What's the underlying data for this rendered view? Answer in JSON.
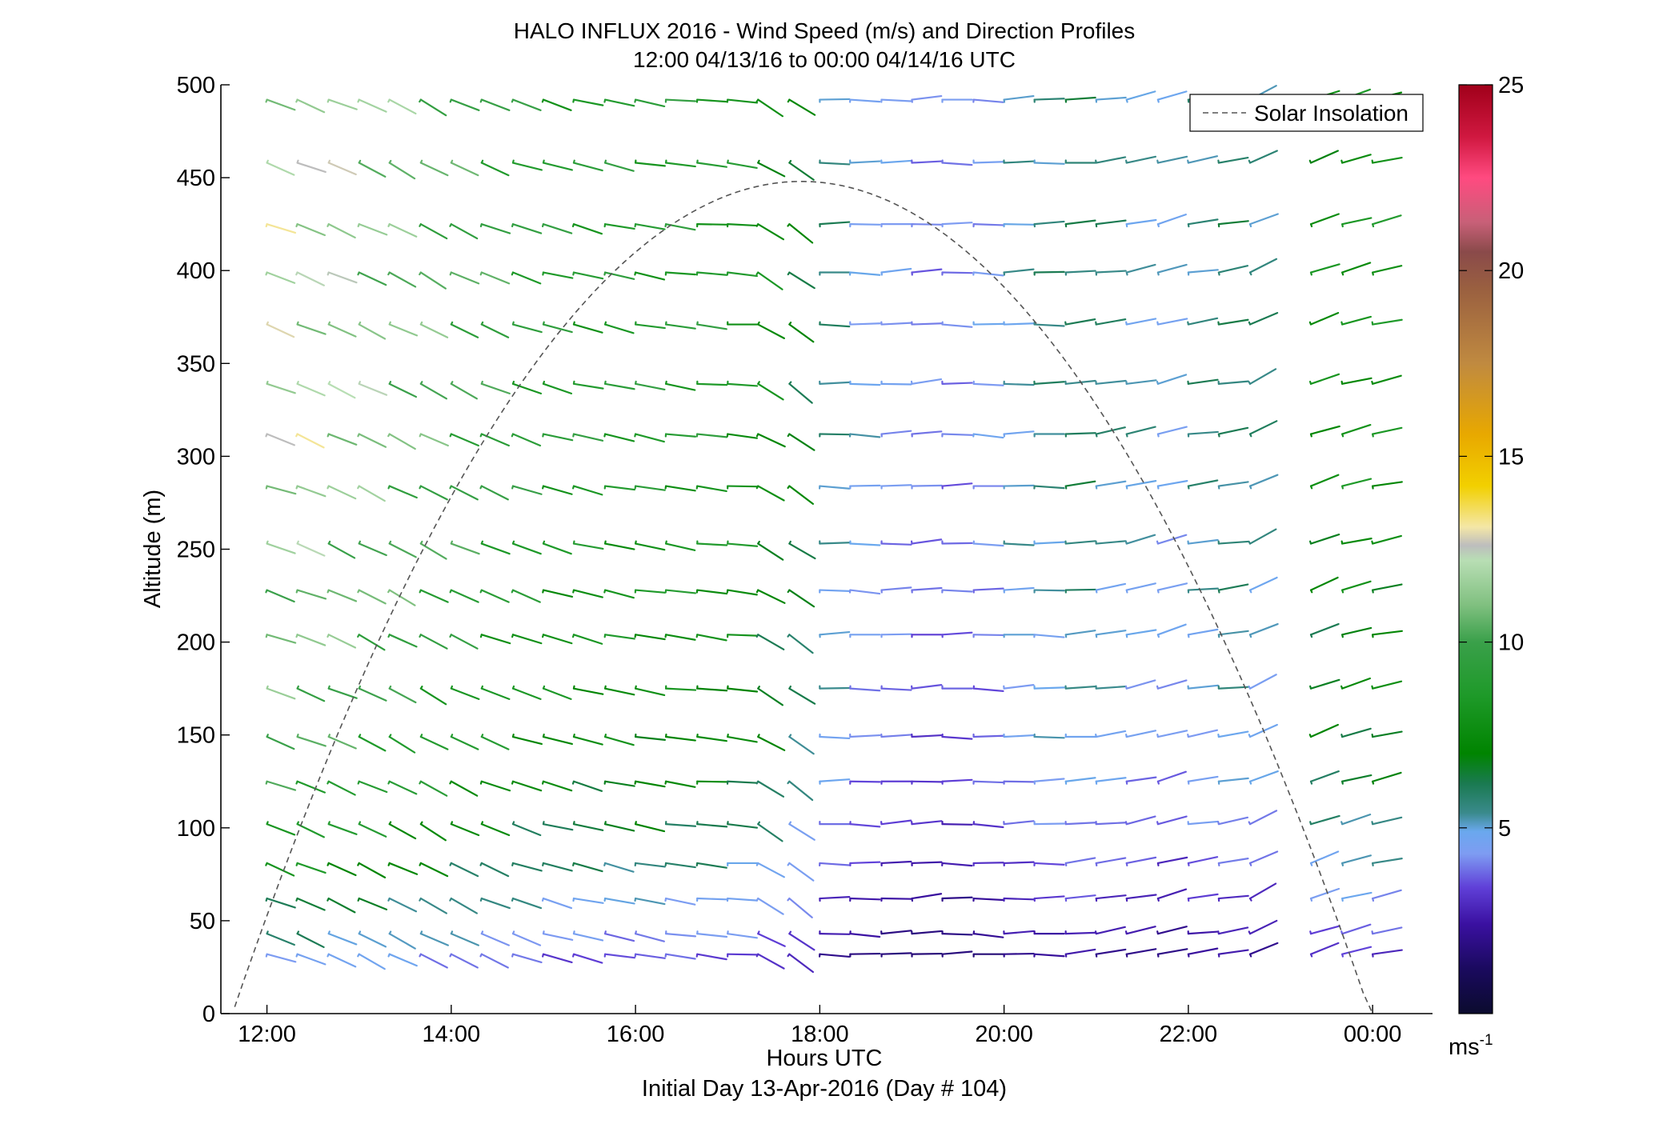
{
  "chart_data": {
    "type": "wind-barb-profile",
    "title": "HALO INFLUX 2016 - Wind Speed (m/s) and Direction Profiles",
    "subtitle": "12:00 04/13/16 to 00:00 04/14/16  UTC",
    "xlabel": "Hours UTC",
    "xlabel2": "Initial Day 13-Apr-2016 (Day # 104)",
    "ylabel": "Altitude (m)",
    "x_tick_labels": [
      "12:00",
      "14:00",
      "16:00",
      "18:00",
      "20:00",
      "22:00",
      "00:00"
    ],
    "x_tick_hours": [
      12,
      14,
      16,
      18,
      20,
      22,
      24
    ],
    "xlim": [
      11.5,
      24.65
    ],
    "y_tick_labels": [
      "0",
      "50",
      "100",
      "150",
      "200",
      "250",
      "300",
      "350",
      "400",
      "450",
      "500"
    ],
    "ylim": [
      0,
      500
    ],
    "colorbar": {
      "range": [
        0,
        25
      ],
      "tick_labels": [
        "5",
        "10",
        "15",
        "20",
        "25"
      ],
      "tick_values": [
        5,
        10,
        15,
        20,
        25
      ],
      "unit_label": "ms",
      "unit_exponent": "-1",
      "stops": [
        {
          "v": 0,
          "c": "#0b0b2e"
        },
        {
          "v": 1.2,
          "c": "#1a0a5e"
        },
        {
          "v": 2.4,
          "c": "#3a10a0"
        },
        {
          "v": 3.4,
          "c": "#6040d8"
        },
        {
          "v": 4.3,
          "c": "#7e9cf2"
        },
        {
          "v": 4.9,
          "c": "#6aa8ee"
        },
        {
          "v": 5.4,
          "c": "#3a8a8c"
        },
        {
          "v": 6.2,
          "c": "#1a7a50"
        },
        {
          "v": 7.0,
          "c": "#008400"
        },
        {
          "v": 8.6,
          "c": "#1f9a2a"
        },
        {
          "v": 10.0,
          "c": "#3aa04a"
        },
        {
          "v": 11.0,
          "c": "#80c080"
        },
        {
          "v": 12.2,
          "c": "#b8deb4"
        },
        {
          "v": 12.6,
          "c": "#bdbdbd"
        },
        {
          "v": 13.1,
          "c": "#f4e7a6"
        },
        {
          "v": 14.2,
          "c": "#f2d000"
        },
        {
          "v": 15.6,
          "c": "#e8a800"
        },
        {
          "v": 17.5,
          "c": "#c08a40"
        },
        {
          "v": 19.5,
          "c": "#9a6040"
        },
        {
          "v": 20.5,
          "c": "#8a4a4a"
        },
        {
          "v": 21.3,
          "c": "#c86078"
        },
        {
          "v": 22.5,
          "c": "#ff4a80"
        },
        {
          "v": 23.6,
          "c": "#d01840"
        },
        {
          "v": 25.0,
          "c": "#a0001a"
        }
      ]
    },
    "legend": {
      "label": "Solar Insolation",
      "placement": "top-right"
    },
    "solar_insolation_curve": {
      "start_hour": 11.65,
      "end_hour": 24.0,
      "peak_hour": 17.8,
      "peak_altitude": 448,
      "style": "dashed-gray"
    },
    "altitudes_m": [
      32,
      43,
      62,
      81,
      102,
      125,
      149,
      175,
      204,
      228,
      253,
      284,
      312,
      339,
      371,
      399,
      425,
      458,
      492
    ],
    "times_hours": [
      12.0,
      12.33,
      12.67,
      13.0,
      13.33,
      13.67,
      14.0,
      14.33,
      14.67,
      15.0,
      15.33,
      15.67,
      16.0,
      16.33,
      16.67,
      17.0,
      17.33,
      17.67,
      18.0,
      18.33,
      18.67,
      19.0,
      19.33,
      19.67,
      20.0,
      20.33,
      20.67,
      21.0,
      21.33,
      21.67,
      22.0,
      22.33,
      22.67,
      23.0,
      23.33,
      23.67,
      24.0
    ],
    "gap_times_hours": [
      23.0
    ],
    "wind_direction_deg_by_time": [
      290,
      292,
      294,
      296,
      297,
      298,
      295,
      292,
      289,
      286,
      284,
      282,
      280,
      278,
      276,
      275,
      300,
      305,
      270,
      272,
      268,
      266,
      270,
      272,
      268,
      270,
      265,
      262,
      258,
      255,
      262,
      262,
      245,
      255,
      250,
      255,
      258
    ],
    "wind_speed_ms_profile_by_altitude": [
      3.2,
      3.8,
      4.4,
      5.2,
      5.8,
      6.4,
      6.8,
      7.0,
      7.2,
      7.4,
      7.6,
      7.8,
      8.0,
      8.0,
      8.0,
      8.0,
      8.0,
      8.0,
      8.0
    ],
    "wind_speed_ms_time_factor": [
      1.5,
      1.5,
      1.45,
      1.4,
      1.35,
      1.3,
      1.25,
      1.2,
      1.15,
      1.1,
      1.1,
      1.1,
      1.1,
      1.1,
      1.1,
      1.05,
      0.95,
      0.85,
      0.7,
      0.6,
      0.55,
      0.5,
      0.5,
      0.55,
      0.65,
      0.7,
      0.75,
      0.7,
      0.65,
      0.6,
      0.7,
      0.75,
      0.7,
      0.9,
      0.95,
      1.0,
      1.0
    ]
  }
}
